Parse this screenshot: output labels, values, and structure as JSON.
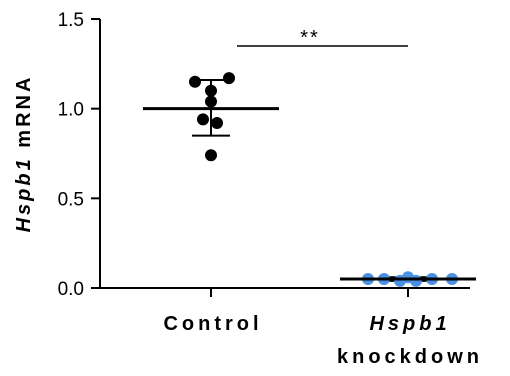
{
  "chart_data": {
    "type": "scatter",
    "ylabel": {
      "italic": "Hspb1",
      "rest": " mRNA"
    },
    "ylim": [
      0,
      1.5
    ],
    "yticks": [
      "0.0",
      "0.5",
      "1.0",
      "1.5"
    ],
    "ytick_values": [
      0,
      0.5,
      1.0,
      1.5
    ],
    "categories": [
      {
        "lines": [
          {
            "italic": "",
            "rest": "Control"
          }
        ]
      },
      {
        "lines": [
          {
            "italic": "Hspb1",
            "rest": ""
          },
          {
            "italic": "",
            "rest": "knockdown"
          }
        ]
      }
    ],
    "series": [
      {
        "color": "#000000",
        "values": [
          1.15,
          1.17,
          1.1,
          1.04,
          0.94,
          0.92,
          0.74
        ],
        "mean": 1.0,
        "error": [
          0.85,
          1.16
        ]
      },
      {
        "color": "#4a90e2",
        "values": [
          0.05,
          0.05,
          0.04,
          0.04,
          0.05,
          0.05,
          0.06
        ],
        "mean": 0.05,
        "error": [
          0.04,
          0.06
        ]
      }
    ],
    "significance": {
      "label": "**",
      "between": [
        0,
        1
      ]
    }
  }
}
